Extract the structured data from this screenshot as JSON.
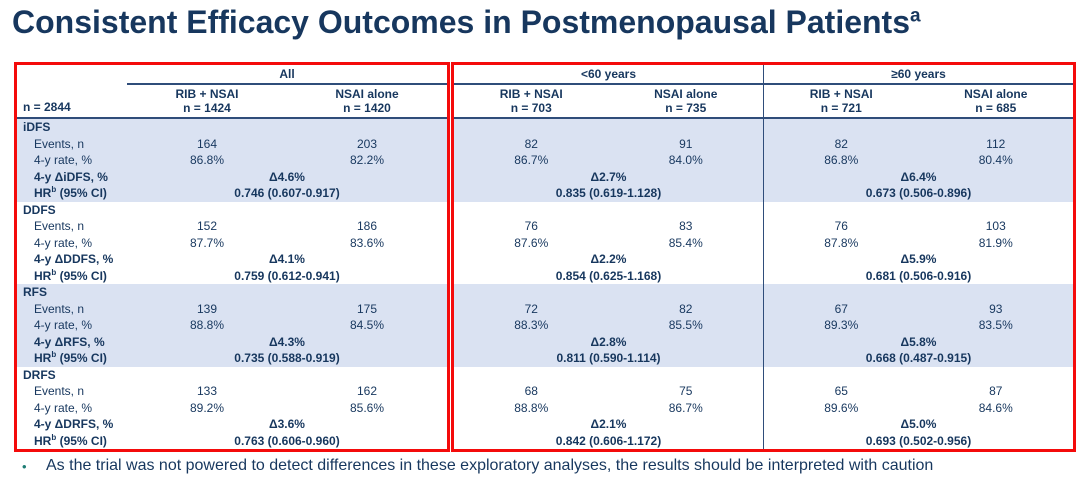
{
  "title": {
    "text": "Consistent Efficacy Outcomes in Postmenopausal Patients",
    "superscript": "a"
  },
  "colors": {
    "navy_text": "#17375e",
    "row_band": "#dae2f2",
    "red_border": "#f40b0b",
    "bullet_teal": "#1e7d74"
  },
  "table": {
    "stub_header": "n = 2844",
    "sections": [
      {
        "label": "All",
        "arms": [
          {
            "name": "RIB + NSAI",
            "n": "n = 1424"
          },
          {
            "name": "NSAI alone",
            "n": "n = 1420"
          }
        ]
      },
      {
        "label": "<60 years",
        "arms": [
          {
            "name": "RIB + NSAI",
            "n": "n = 703"
          },
          {
            "name": "NSAI alone",
            "n": "n = 735"
          }
        ]
      },
      {
        "label": "≥60 years",
        "arms": [
          {
            "name": "RIB + NSAI",
            "n": "n = 721"
          },
          {
            "name": "NSAI alone",
            "n": "n = 685"
          }
        ]
      }
    ],
    "row_labels": {
      "events": "Events, n",
      "rate": "4-y rate, %",
      "hr_prefix": "HR",
      "hr_sup": "b",
      "hr_suffix": " (95% CI)"
    },
    "groups": [
      {
        "name": "iDFS",
        "delta_label": "4-y ΔiDFS, %",
        "shaded": true,
        "events": [
          [
            "164",
            "203"
          ],
          [
            "82",
            "91"
          ],
          [
            "82",
            "112"
          ]
        ],
        "rates": [
          [
            "86.8%",
            "82.2%"
          ],
          [
            "86.7%",
            "84.0%"
          ],
          [
            "86.8%",
            "80.4%"
          ]
        ],
        "deltas": [
          "Δ4.6%",
          "Δ2.7%",
          "Δ6.4%"
        ],
        "hrs": [
          "0.746 (0.607-0.917)",
          "0.835 (0.619-1.128)",
          "0.673 (0.506-0.896)"
        ]
      },
      {
        "name": "DDFS",
        "delta_label": "4-y ΔDDFS, %",
        "shaded": false,
        "events": [
          [
            "152",
            "186"
          ],
          [
            "76",
            "83"
          ],
          [
            "76",
            "103"
          ]
        ],
        "rates": [
          [
            "87.7%",
            "83.6%"
          ],
          [
            "87.6%",
            "85.4%"
          ],
          [
            "87.8%",
            "81.9%"
          ]
        ],
        "deltas": [
          "Δ4.1%",
          "Δ2.2%",
          "Δ5.9%"
        ],
        "hrs": [
          "0.759 (0.612-0.941)",
          "0.854 (0.625-1.168)",
          "0.681 (0.506-0.916)"
        ]
      },
      {
        "name": "RFS",
        "delta_label": "4-y ΔRFS, %",
        "shaded": true,
        "events": [
          [
            "139",
            "175"
          ],
          [
            "72",
            "82"
          ],
          [
            "67",
            "93"
          ]
        ],
        "rates": [
          [
            "88.8%",
            "84.5%"
          ],
          [
            "88.3%",
            "85.5%"
          ],
          [
            "89.3%",
            "83.5%"
          ]
        ],
        "deltas": [
          "Δ4.3%",
          "Δ2.8%",
          "Δ5.8%"
        ],
        "hrs": [
          "0.735 (0.588-0.919)",
          "0.811 (0.590-1.114)",
          "0.668 (0.487-0.915)"
        ]
      },
      {
        "name": "DRFS",
        "delta_label": "4-y ΔDRFS, %",
        "shaded": false,
        "events": [
          [
            "133",
            "162"
          ],
          [
            "68",
            "75"
          ],
          [
            "65",
            "87"
          ]
        ],
        "rates": [
          [
            "89.2%",
            "85.6%"
          ],
          [
            "88.8%",
            "86.7%"
          ],
          [
            "89.6%",
            "84.6%"
          ]
        ],
        "deltas": [
          "Δ3.6%",
          "Δ2.1%",
          "Δ5.0%"
        ],
        "hrs": [
          "0.763 (0.606-0.960)",
          "0.842 (0.606-1.172)",
          "0.693 (0.502-0.956)"
        ]
      }
    ]
  },
  "footnote": {
    "bullet": "•",
    "text": "As the trial was not powered to detect differences in these exploratory analyses, the results should be interpreted with caution"
  }
}
